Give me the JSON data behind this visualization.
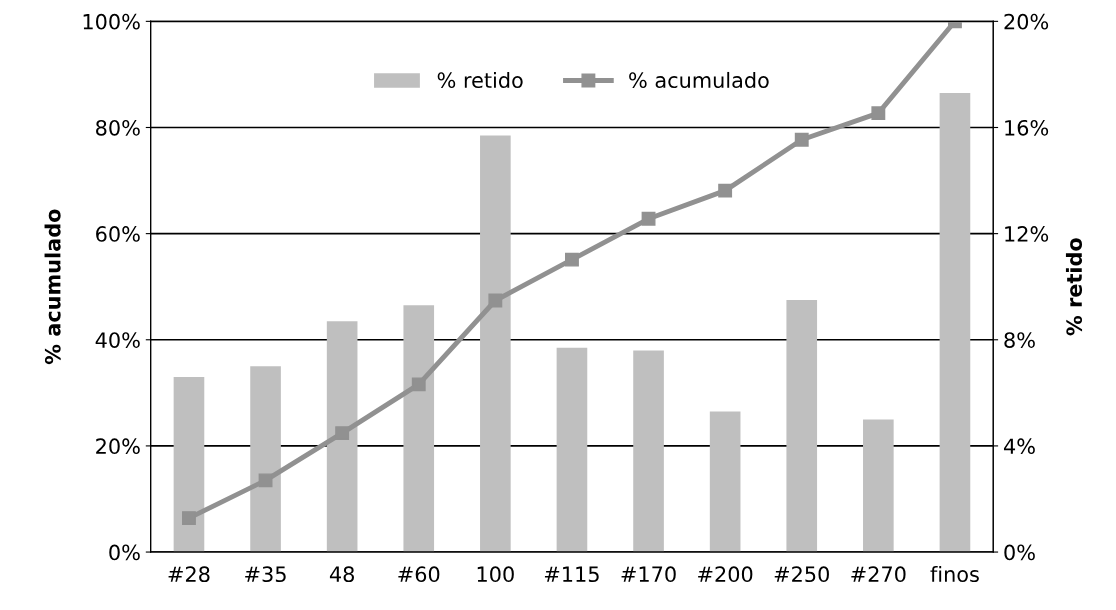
{
  "chart_data": {
    "type": "bar",
    "categories": [
      "#28",
      "#35",
      "48",
      "#60",
      "100",
      "#115",
      "#170",
      "#200",
      "#250",
      "#270",
      "finos"
    ],
    "series": [
      {
        "name": "% retido",
        "axis": "y2",
        "color": "#bfbfbf",
        "values": [
          6.6,
          7.0,
          8.7,
          9.3,
          15.7,
          7.7,
          7.6,
          5.3,
          9.5,
          5.0,
          17.3
        ]
      },
      {
        "name": "% acumulado",
        "type": "line",
        "color": "#919191",
        "marker": "square",
        "values": [
          6.4,
          13.5,
          22.4,
          31.6,
          47.4,
          55.1,
          62.8,
          68.1,
          77.7,
          82.7,
          100
        ]
      }
    ],
    "ylabel": "% acumulado",
    "y2label": "% retido",
    "ylim": [
      0,
      100
    ],
    "yticks": [
      {
        "value": 0,
        "label": "0%"
      },
      {
        "value": 20,
        "label": "20%"
      },
      {
        "value": 40,
        "label": "40%"
      },
      {
        "value": 60,
        "label": "60%"
      },
      {
        "value": 80,
        "label": "80%"
      },
      {
        "value": 100,
        "label": "100%"
      }
    ],
    "y2lim": [
      0,
      20
    ],
    "y2ticks": [
      {
        "value": 0,
        "label": "0%"
      },
      {
        "value": 4,
        "label": "4%"
      },
      {
        "value": 8,
        "label": "8%"
      },
      {
        "value": 12,
        "label": "12%"
      },
      {
        "value": 16,
        "label": "16%"
      },
      {
        "value": 20,
        "label": "20%"
      }
    ],
    "grid": "y",
    "legend": "top"
  }
}
